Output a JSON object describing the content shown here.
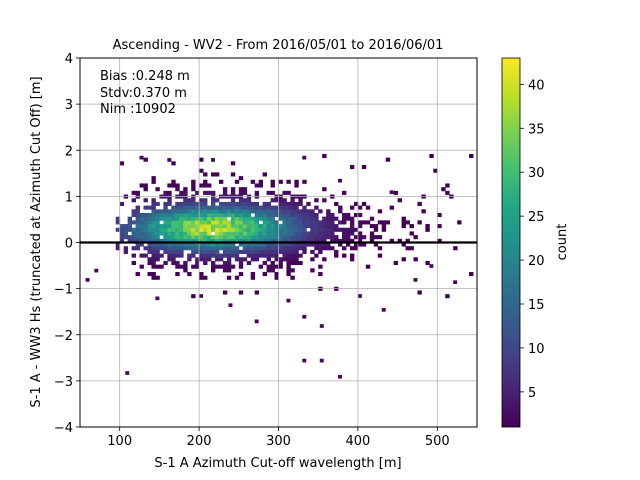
{
  "chart_data": {
    "type": "heatmap",
    "title": "Ascending - WV2 - From 2016/05/01 to 2016/06/01",
    "xlabel": "S-1 A Azimuth Cut-off wavelength [m]",
    "ylabel": "S-1 A - WW3 Hs (truncated at Azimuth Cut Off) [m]",
    "xlim": [
      50,
      550
    ],
    "ylim": [
      -4,
      4
    ],
    "xticks": [
      100,
      200,
      300,
      400,
      500
    ],
    "yticks": [
      -4,
      -3,
      -2,
      -1,
      0,
      1,
      2,
      3,
      4
    ],
    "grid": true,
    "reference_line_y": 0,
    "colormap": "viridis",
    "colorbar": {
      "label": "count",
      "range": [
        1,
        43
      ],
      "ticks": [
        5,
        10,
        15,
        20,
        25,
        30,
        35,
        40
      ]
    },
    "stats": {
      "bias": "Bias :0.248 m",
      "stdv": "Stdv:0.370 m",
      "nim": "Nim :10902"
    },
    "density": {
      "peak": {
        "x": 215,
        "y": 0.28,
        "count": 43
      },
      "x_extent": [
        55,
        550
      ],
      "y_extent": [
        -2.95,
        1.9
      ]
    }
  }
}
